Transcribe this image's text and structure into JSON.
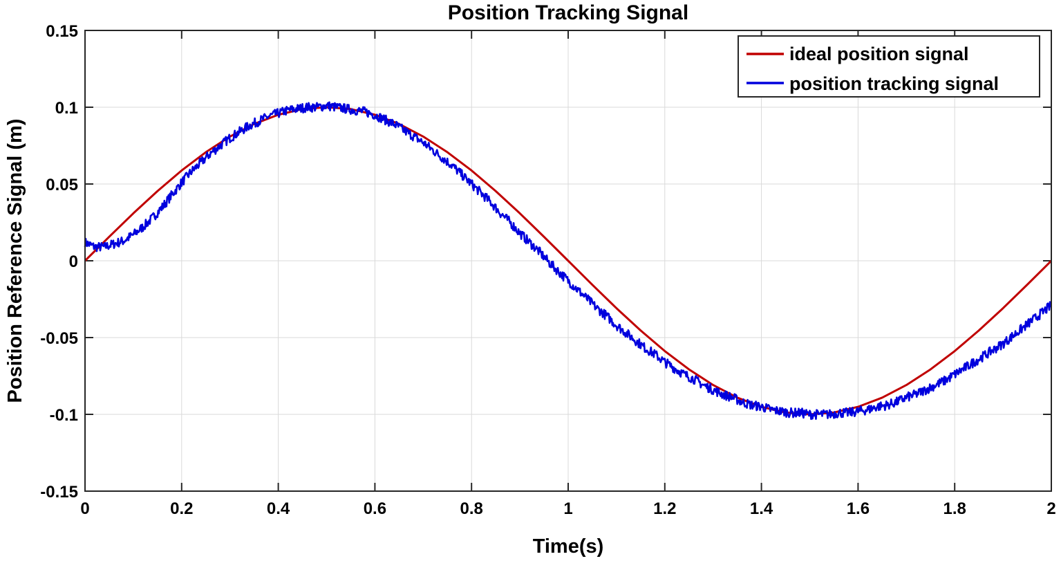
{
  "chart_data": {
    "type": "line",
    "title": "Position Tracking Signal",
    "xlabel": "Time(s)",
    "ylabel": "Position Reference Signal (m)",
    "xlim": [
      0,
      2
    ],
    "ylim": [
      -0.15,
      0.15
    ],
    "xticks": [
      "0",
      "0.2",
      "0.4",
      "0.6",
      "0.8",
      "1",
      "1.2",
      "1.4",
      "1.6",
      "1.8",
      "2"
    ],
    "yticks": [
      "0.15",
      "0.1",
      "0.05",
      "0",
      "-0.05",
      "-0.1",
      "-0.15"
    ],
    "grid": true,
    "legend_position": "top-right",
    "series": [
      {
        "name": "ideal position signal",
        "color": "#c00000",
        "x": [
          0,
          0.05,
          0.1,
          0.15,
          0.2,
          0.25,
          0.3,
          0.35,
          0.4,
          0.45,
          0.5,
          0.55,
          0.6,
          0.65,
          0.7,
          0.75,
          0.8,
          0.85,
          0.9,
          0.95,
          1.0,
          1.05,
          1.1,
          1.15,
          1.2,
          1.25,
          1.3,
          1.35,
          1.4,
          1.45,
          1.5,
          1.55,
          1.6,
          1.65,
          1.7,
          1.75,
          1.8,
          1.85,
          1.9,
          1.95,
          2.0
        ],
        "y": [
          0,
          0.0156,
          0.0309,
          0.0454,
          0.0588,
          0.0707,
          0.0809,
          0.0891,
          0.0951,
          0.0988,
          0.1,
          0.0988,
          0.0951,
          0.0891,
          0.0809,
          0.0707,
          0.0588,
          0.0454,
          0.0309,
          0.0156,
          0.0,
          -0.0156,
          -0.0309,
          -0.0454,
          -0.0588,
          -0.0707,
          -0.0809,
          -0.0891,
          -0.0951,
          -0.0988,
          -0.1,
          -0.0988,
          -0.0951,
          -0.0891,
          -0.0809,
          -0.0707,
          -0.0588,
          -0.0454,
          -0.0309,
          -0.0156,
          0.0
        ]
      },
      {
        "name": "position tracking signal",
        "color": "#0000dd",
        "x": [
          0,
          0.02,
          0.04,
          0.06,
          0.08,
          0.1,
          0.12,
          0.14,
          0.16,
          0.18,
          0.2,
          0.22,
          0.24,
          0.26,
          0.28,
          0.3,
          0.32,
          0.34,
          0.36,
          0.38,
          0.4,
          0.42,
          0.44,
          0.46,
          0.48,
          0.5,
          0.52,
          0.54,
          0.56,
          0.58,
          0.6,
          0.62,
          0.64,
          0.66,
          0.68,
          0.7,
          0.72,
          0.74,
          0.76,
          0.78,
          0.8,
          0.82,
          0.84,
          0.86,
          0.88,
          0.9,
          0.92,
          0.94,
          0.96,
          0.98,
          1.0,
          1.02,
          1.04,
          1.06,
          1.08,
          1.1,
          1.12,
          1.14,
          1.16,
          1.18,
          1.2,
          1.22,
          1.24,
          1.26,
          1.28,
          1.3,
          1.32,
          1.34,
          1.36,
          1.38,
          1.4,
          1.42,
          1.44,
          1.46,
          1.48,
          1.5,
          1.52,
          1.54,
          1.56,
          1.58,
          1.6,
          1.62,
          1.64,
          1.66,
          1.68,
          1.7,
          1.72,
          1.74,
          1.76,
          1.78,
          1.8,
          1.82,
          1.84,
          1.86,
          1.88,
          1.9,
          1.92,
          1.94,
          1.96,
          1.98,
          2.0
        ],
        "y": [
          0.012,
          0.009,
          0.009,
          0.011,
          0.013,
          0.017,
          0.022,
          0.028,
          0.035,
          0.043,
          0.051,
          0.058,
          0.064,
          0.07,
          0.075,
          0.08,
          0.084,
          0.088,
          0.091,
          0.094,
          0.096,
          0.098,
          0.099,
          0.1,
          0.1,
          0.101,
          0.1,
          0.099,
          0.098,
          0.097,
          0.095,
          0.092,
          0.089,
          0.085,
          0.081,
          0.077,
          0.072,
          0.067,
          0.062,
          0.056,
          0.05,
          0.044,
          0.038,
          0.031,
          0.025,
          0.018,
          0.012,
          0.006,
          -0.001,
          -0.007,
          -0.013,
          -0.019,
          -0.025,
          -0.031,
          -0.036,
          -0.042,
          -0.047,
          -0.052,
          -0.057,
          -0.061,
          -0.066,
          -0.07,
          -0.074,
          -0.077,
          -0.081,
          -0.084,
          -0.087,
          -0.089,
          -0.092,
          -0.094,
          -0.095,
          -0.097,
          -0.098,
          -0.099,
          -0.099,
          -0.1,
          -0.1,
          -0.1,
          -0.099,
          -0.099,
          -0.098,
          -0.097,
          -0.095,
          -0.094,
          -0.092,
          -0.089,
          -0.087,
          -0.084,
          -0.081,
          -0.078,
          -0.074,
          -0.07,
          -0.066,
          -0.062,
          -0.058,
          -0.054,
          -0.049,
          -0.044,
          -0.039,
          -0.034,
          -0.029
        ]
      }
    ]
  }
}
